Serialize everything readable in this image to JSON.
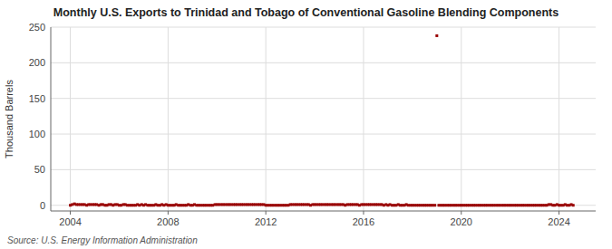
{
  "chart_data": {
    "type": "scatter",
    "title": "Monthly U.S. Exports to Trinidad and Tobago of Conventional Gasoline Blending Components",
    "y_label": "Thousand Barrels",
    "source": "Source: U.S. Energy Information Administration",
    "color": "#990000",
    "marker": "square",
    "grid": true,
    "xlim": [
      2003.2,
      2025.5
    ],
    "ylim": [
      -8,
      250
    ],
    "xticks": [
      2004,
      2008,
      2012,
      2016,
      2020,
      2024
    ],
    "yticks": [
      0,
      50,
      100,
      150,
      200,
      250
    ],
    "x": [
      2004.0,
      2004.08,
      2004.17,
      2004.25,
      2004.33,
      2004.42,
      2004.5,
      2004.58,
      2004.67,
      2004.75,
      2004.83,
      2004.92,
      2005.0,
      2005.08,
      2005.17,
      2005.25,
      2005.33,
      2005.42,
      2005.5,
      2005.58,
      2005.67,
      2005.75,
      2005.83,
      2005.92,
      2006.0,
      2006.08,
      2006.17,
      2006.25,
      2006.33,
      2006.42,
      2006.5,
      2006.58,
      2006.67,
      2006.75,
      2006.83,
      2006.92,
      2007.0,
      2007.08,
      2007.17,
      2007.25,
      2007.33,
      2007.42,
      2007.5,
      2007.58,
      2007.67,
      2007.75,
      2007.83,
      2007.92,
      2008.0,
      2008.08,
      2008.17,
      2008.25,
      2008.33,
      2008.42,
      2008.5,
      2008.58,
      2008.67,
      2008.75,
      2008.83,
      2008.92,
      2009.0,
      2009.08,
      2009.17,
      2009.25,
      2009.33,
      2009.42,
      2009.5,
      2009.58,
      2009.67,
      2009.75,
      2009.83,
      2009.92,
      2010.0,
      2010.08,
      2010.17,
      2010.25,
      2010.33,
      2010.42,
      2010.5,
      2010.58,
      2010.67,
      2010.75,
      2010.83,
      2010.92,
      2011.0,
      2011.08,
      2011.17,
      2011.25,
      2011.33,
      2011.42,
      2011.5,
      2011.58,
      2011.67,
      2011.75,
      2011.83,
      2011.92,
      2012.0,
      2012.08,
      2012.17,
      2012.25,
      2012.33,
      2012.42,
      2012.5,
      2012.58,
      2012.67,
      2012.75,
      2012.83,
      2012.92,
      2013.0,
      2013.08,
      2013.17,
      2013.25,
      2013.33,
      2013.42,
      2013.5,
      2013.58,
      2013.67,
      2013.75,
      2013.83,
      2013.92,
      2014.0,
      2014.08,
      2014.17,
      2014.25,
      2014.33,
      2014.42,
      2014.5,
      2014.58,
      2014.67,
      2014.75,
      2014.83,
      2014.92,
      2015.0,
      2015.08,
      2015.17,
      2015.25,
      2015.33,
      2015.42,
      2015.5,
      2015.58,
      2015.67,
      2015.75,
      2015.83,
      2015.92,
      2016.0,
      2016.08,
      2016.17,
      2016.25,
      2016.33,
      2016.42,
      2016.5,
      2016.58,
      2016.67,
      2016.75,
      2016.83,
      2016.92,
      2017.0,
      2017.08,
      2017.17,
      2017.25,
      2017.33,
      2017.42,
      2017.5,
      2017.58,
      2017.67,
      2017.75,
      2017.83,
      2017.92,
      2018.0,
      2018.08,
      2018.17,
      2018.25,
      2018.33,
      2018.42,
      2018.5,
      2018.58,
      2018.67,
      2018.75,
      2018.83,
      2018.92,
      2019.0,
      2019.08,
      2019.17,
      2019.25,
      2019.33,
      2019.42,
      2019.5,
      2019.58,
      2019.67,
      2019.75,
      2019.83,
      2019.92,
      2020.0,
      2020.08,
      2020.17,
      2020.25,
      2020.33,
      2020.42,
      2020.5,
      2020.58,
      2020.67,
      2020.75,
      2020.83,
      2020.92,
      2021.0,
      2021.08,
      2021.17,
      2021.25,
      2021.33,
      2021.42,
      2021.5,
      2021.58,
      2021.67,
      2021.75,
      2021.83,
      2021.92,
      2022.0,
      2022.08,
      2022.17,
      2022.25,
      2022.33,
      2022.42,
      2022.5,
      2022.58,
      2022.67,
      2022.75,
      2022.83,
      2022.92,
      2023.0,
      2023.08,
      2023.17,
      2023.25,
      2023.33,
      2023.42,
      2023.5,
      2023.58,
      2023.67,
      2023.75,
      2023.83,
      2023.92,
      2024.0,
      2024.08,
      2024.17,
      2024.25,
      2024.33,
      2024.42,
      2024.5,
      2024.58
    ],
    "values": [
      0,
      1,
      2,
      1,
      1,
      1,
      1,
      1,
      0,
      1,
      1,
      1,
      1,
      1,
      0,
      1,
      1,
      0,
      0,
      1,
      1,
      0,
      1,
      1,
      0,
      0,
      1,
      1,
      0,
      0,
      0,
      0,
      0,
      1,
      0,
      1,
      0,
      1,
      0,
      0,
      0,
      0,
      1,
      0,
      0,
      1,
      0,
      1,
      0,
      0,
      0,
      0,
      1,
      0,
      0,
      0,
      0,
      0,
      1,
      0,
      0,
      1,
      0,
      0,
      0,
      0,
      0,
      0,
      0,
      0,
      0,
      1,
      1,
      1,
      1,
      1,
      1,
      1,
      1,
      1,
      1,
      1,
      1,
      1,
      1,
      1,
      1,
      1,
      1,
      1,
      1,
      1,
      1,
      1,
      1,
      1,
      0,
      0,
      0,
      0,
      0,
      0,
      0,
      0,
      0,
      0,
      0,
      0,
      1,
      1,
      1,
      1,
      1,
      1,
      1,
      1,
      1,
      1,
      0,
      1,
      1,
      1,
      1,
      1,
      1,
      1,
      1,
      1,
      1,
      1,
      1,
      1,
      1,
      1,
      1,
      0,
      1,
      1,
      1,
      1,
      1,
      1,
      0,
      1,
      1,
      1,
      1,
      1,
      1,
      1,
      1,
      1,
      1,
      1,
      0,
      1,
      0,
      1,
      0,
      0,
      0,
      1,
      0,
      0,
      0,
      1,
      0,
      0,
      0,
      0,
      0,
      0,
      0,
      0,
      0,
      0,
      0,
      0,
      0,
      0,
      238,
      0,
      0,
      0,
      0,
      0,
      0,
      0,
      0,
      0,
      0,
      0,
      0,
      0,
      0,
      0,
      0,
      0,
      0,
      0,
      0,
      0,
      0,
      0,
      0,
      0,
      0,
      0,
      0,
      0,
      0,
      0,
      0,
      0,
      0,
      0,
      0,
      0,
      0,
      0,
      0,
      0,
      0,
      0,
      0,
      0,
      0,
      0,
      0,
      0,
      0,
      0,
      0,
      0,
      0,
      1,
      1,
      0,
      0,
      1,
      0,
      0,
      0,
      1,
      0,
      0,
      1,
      0
    ]
  }
}
